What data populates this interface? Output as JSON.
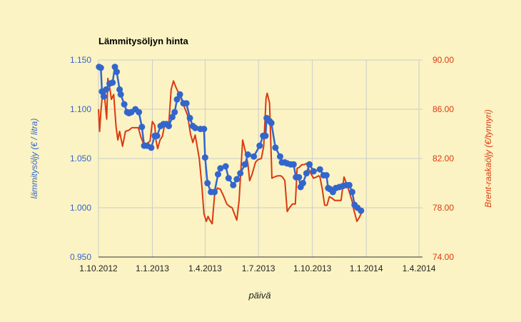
{
  "chart_data": {
    "type": "line",
    "title": "Lämmitysöljyn hinta",
    "xlabel": "päivä",
    "ylabel_left": "lämmitysöljy (€ / litra)",
    "ylabel_right": "Brent-raakaöljy (€/tynnyri)",
    "x_ticks": [
      "1.10.2012",
      "1.1.2013",
      "1.4.2013",
      "1.7.2013",
      "1.10.2013",
      "1.1.2014",
      "1.4.2014"
    ],
    "x_tick_pos": [
      0,
      92,
      182,
      273,
      365,
      457,
      547
    ],
    "x_range": [
      0,
      553
    ],
    "left_axis": {
      "ticks": [
        "0.950",
        "1.000",
        "1.050",
        "1.100",
        "1.150"
      ],
      "ylim": [
        0.95,
        1.15
      ],
      "color": "#3366cc"
    },
    "right_axis": {
      "ticks": [
        "74.00",
        "78.00",
        "82.00",
        "86.00",
        "90.00"
      ],
      "ylim": [
        74,
        90
      ],
      "color": "#dc3912"
    },
    "grid": true,
    "series": [
      {
        "name": "lämmitysöljy",
        "axis": "left",
        "color": "#3366cc",
        "markers": true,
        "points": [
          [
            1,
            1.143
          ],
          [
            4,
            1.142
          ],
          [
            6,
            1.118
          ],
          [
            9,
            1.113
          ],
          [
            13,
            1.12
          ],
          [
            19,
            1.126
          ],
          [
            24,
            1.127
          ],
          [
            28,
            1.143
          ],
          [
            31,
            1.138
          ],
          [
            36,
            1.12
          ],
          [
            38,
            1.115
          ],
          [
            44,
            1.105
          ],
          [
            49,
            1.097
          ],
          [
            52,
            1.096
          ],
          [
            56,
            1.097
          ],
          [
            63,
            1.1
          ],
          [
            69,
            1.097
          ],
          [
            74,
            1.082
          ],
          [
            78,
            1.063
          ],
          [
            83,
            1.063
          ],
          [
            90,
            1.061
          ],
          [
            96,
            1.073
          ],
          [
            100,
            1.073
          ],
          [
            106,
            1.083
          ],
          [
            111,
            1.085
          ],
          [
            116,
            1.085
          ],
          [
            120,
            1.083
          ],
          [
            126,
            1.092
          ],
          [
            130,
            1.097
          ],
          [
            134,
            1.11
          ],
          [
            139,
            1.115
          ],
          [
            145,
            1.106
          ],
          [
            150,
            1.106
          ],
          [
            156,
            1.091
          ],
          [
            161,
            1.083
          ],
          [
            165,
            1.081
          ],
          [
            174,
            1.08
          ],
          [
            180,
            1.08
          ],
          [
            182,
            1.051
          ],
          [
            186,
            1.025
          ],
          [
            192,
            1.016
          ],
          [
            198,
            1.016
          ],
          [
            204,
            1.034
          ],
          [
            208,
            1.04
          ],
          [
            217,
            1.042
          ],
          [
            222,
            1.03
          ],
          [
            230,
            1.023
          ],
          [
            236,
            1.029
          ],
          [
            242,
            1.035
          ],
          [
            250,
            1.044
          ],
          [
            255,
            1.054
          ],
          [
            265,
            1.052
          ],
          [
            275,
            1.063
          ],
          [
            281,
            1.073
          ],
          [
            285,
            1.073
          ],
          [
            287,
            1.091
          ],
          [
            292,
            1.088
          ],
          [
            295,
            1.086
          ],
          [
            302,
            1.061
          ],
          [
            310,
            1.052
          ],
          [
            313,
            1.046
          ],
          [
            318,
            1.046
          ],
          [
            322,
            1.045
          ],
          [
            328,
            1.044
          ],
          [
            333,
            1.044
          ],
          [
            337,
            1.031
          ],
          [
            342,
            1.031
          ],
          [
            345,
            1.021
          ],
          [
            349,
            1.025
          ],
          [
            355,
            1.035
          ],
          [
            360,
            1.044
          ],
          [
            367,
            1.037
          ],
          [
            378,
            1.039
          ],
          [
            384,
            1.033
          ],
          [
            389,
            1.033
          ],
          [
            392,
            1.02
          ],
          [
            395,
            1.019
          ],
          [
            400,
            1.016
          ],
          [
            405,
            1.02
          ],
          [
            411,
            1.021
          ],
          [
            417,
            1.022
          ],
          [
            423,
            1.023
          ],
          [
            428,
            1.023
          ],
          [
            433,
            1.016
          ],
          [
            437,
            1.003
          ],
          [
            442,
            1.0
          ],
          [
            448,
            0.997
          ]
        ]
      },
      {
        "name": "Brent-raakaöljy",
        "axis": "right",
        "color": "#dc3912",
        "markers": false,
        "points": [
          [
            0,
            86.0
          ],
          [
            2,
            84.2
          ],
          [
            4,
            85.8
          ],
          [
            7,
            87.3
          ],
          [
            10,
            87.2
          ],
          [
            14,
            85.2
          ],
          [
            16,
            88.5
          ],
          [
            20,
            87.5
          ],
          [
            22,
            86.8
          ],
          [
            26,
            87.2
          ],
          [
            30,
            84.6
          ],
          [
            33,
            83.5
          ],
          [
            36,
            84.2
          ],
          [
            41,
            83.0
          ],
          [
            46,
            84.2
          ],
          [
            52,
            84.3
          ],
          [
            57,
            84.5
          ],
          [
            62,
            84.5
          ],
          [
            68,
            84.5
          ],
          [
            72,
            83.8
          ],
          [
            76,
            83.3
          ],
          [
            82,
            83.2
          ],
          [
            88,
            83.4
          ],
          [
            92,
            85.0
          ],
          [
            96,
            84.7
          ],
          [
            98,
            83.5
          ],
          [
            101,
            82.8
          ],
          [
            105,
            83.5
          ],
          [
            109,
            83.8
          ],
          [
            112,
            84.5
          ],
          [
            116,
            84.8
          ],
          [
            120,
            84.8
          ],
          [
            124,
            87.6
          ],
          [
            128,
            88.3
          ],
          [
            132,
            87.8
          ],
          [
            140,
            87.0
          ],
          [
            148,
            86.0
          ],
          [
            152,
            85.5
          ],
          [
            157,
            84.0
          ],
          [
            161,
            83.3
          ],
          [
            165,
            83.9
          ],
          [
            172,
            82.0
          ],
          [
            176,
            80.0
          ],
          [
            180,
            77.5
          ],
          [
            184,
            76.9
          ],
          [
            187,
            77.3
          ],
          [
            190,
            77.0
          ],
          [
            194,
            76.7
          ],
          [
            198,
            79.0
          ],
          [
            203,
            79.6
          ],
          [
            208,
            79.5
          ],
          [
            213,
            79.0
          ],
          [
            219,
            78.3
          ],
          [
            224,
            78.1
          ],
          [
            228,
            78.0
          ],
          [
            232,
            77.5
          ],
          [
            236,
            77.0
          ],
          [
            240,
            78.6
          ],
          [
            246,
            83.5
          ],
          [
            251,
            82.5
          ],
          [
            255,
            81.6
          ],
          [
            258,
            80.2
          ],
          [
            262,
            80.7
          ],
          [
            268,
            81.7
          ],
          [
            272,
            81.9
          ],
          [
            278,
            82.0
          ],
          [
            282,
            83.0
          ],
          [
            286,
            86.9
          ],
          [
            288,
            87.3
          ],
          [
            292,
            86.5
          ],
          [
            296,
            80.4
          ],
          [
            300,
            80.5
          ],
          [
            306,
            80.6
          ],
          [
            311,
            80.6
          ],
          [
            314,
            80.5
          ],
          [
            318,
            80.2
          ],
          [
            322,
            77.7
          ],
          [
            326,
            78.0
          ],
          [
            331,
            78.3
          ],
          [
            336,
            78.3
          ],
          [
            339,
            81.2
          ],
          [
            343,
            81.3
          ],
          [
            347,
            81.5
          ],
          [
            351,
            81.5
          ],
          [
            355,
            81.6
          ],
          [
            360,
            81.0
          ],
          [
            367,
            80.4
          ],
          [
            372,
            80.5
          ],
          [
            376,
            80.6
          ],
          [
            378,
            80.5
          ],
          [
            382,
            79.5
          ],
          [
            386,
            78.2
          ],
          [
            390,
            78.2
          ],
          [
            394,
            78.9
          ],
          [
            398,
            78.8
          ],
          [
            403,
            78.6
          ],
          [
            408,
            78.6
          ],
          [
            414,
            78.6
          ],
          [
            419,
            80.5
          ],
          [
            423,
            80.0
          ],
          [
            428,
            79.3
          ],
          [
            433,
            78.5
          ],
          [
            436,
            77.8
          ],
          [
            441,
            76.9
          ],
          [
            445,
            77.2
          ],
          [
            449,
            77.6
          ]
        ]
      }
    ]
  }
}
